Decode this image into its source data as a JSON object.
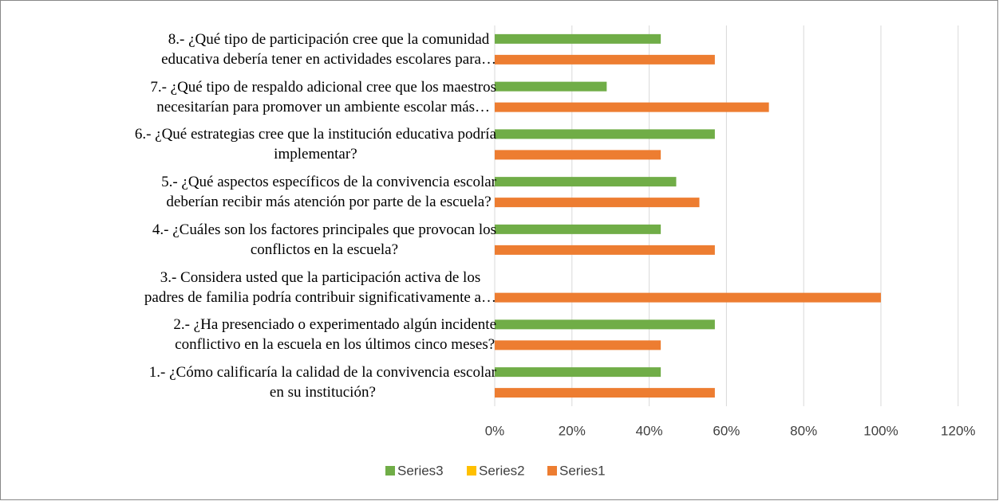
{
  "chart_data": {
    "type": "bar",
    "orientation": "horizontal",
    "categories": [
      "1.- ¿Cómo calificaría la calidad de la convivencia escolar\nen su institución?",
      "2.- ¿Ha presenciado o experimentado algún incidente\nconflictivo en la escuela en los últimos cinco meses?",
      "3.- Considera usted que la participación activa de los\npadres de familia podría contribuir significativamente a…",
      "4.- ¿Cuáles son los factores principales que provocan los\nconflictos en la escuela?",
      "5.- ¿Qué aspectos específicos de la convivencia escolar\ndeberían recibir más atención por parte de la escuela?",
      "6.- ¿Qué estrategias cree que la institución educativa podría\nimplementar?",
      "7.- ¿Qué tipo de respaldo adicional cree que los maestros\nnecesitarían para promover un ambiente escolar más…",
      "8.- ¿Qué tipo de participación cree que la comunidad\neducativa debería tener en actividades escolares para…"
    ],
    "series": [
      {
        "name": "Series1",
        "color": "#ed7d31",
        "values": [
          57,
          43,
          100,
          57,
          53,
          43,
          71,
          57
        ]
      },
      {
        "name": "Series2",
        "color": "#ffc000",
        "values": [
          0,
          0,
          0,
          0,
          0,
          0,
          0,
          0
        ]
      },
      {
        "name": "Series3",
        "color": "#70ad47",
        "values": [
          43,
          57,
          0,
          43,
          47,
          57,
          29,
          43
        ]
      }
    ],
    "xlim": [
      0,
      120
    ],
    "xticks": [
      {
        "value": 0,
        "label": "0%"
      },
      {
        "value": 20,
        "label": "20%"
      },
      {
        "value": 40,
        "label": "40%"
      },
      {
        "value": 60,
        "label": "60%"
      },
      {
        "value": 80,
        "label": "80%"
      },
      {
        "value": 100,
        "label": "100%"
      },
      {
        "value": 120,
        "label": "120%"
      }
    ],
    "grid": true,
    "legend": "bottom"
  }
}
